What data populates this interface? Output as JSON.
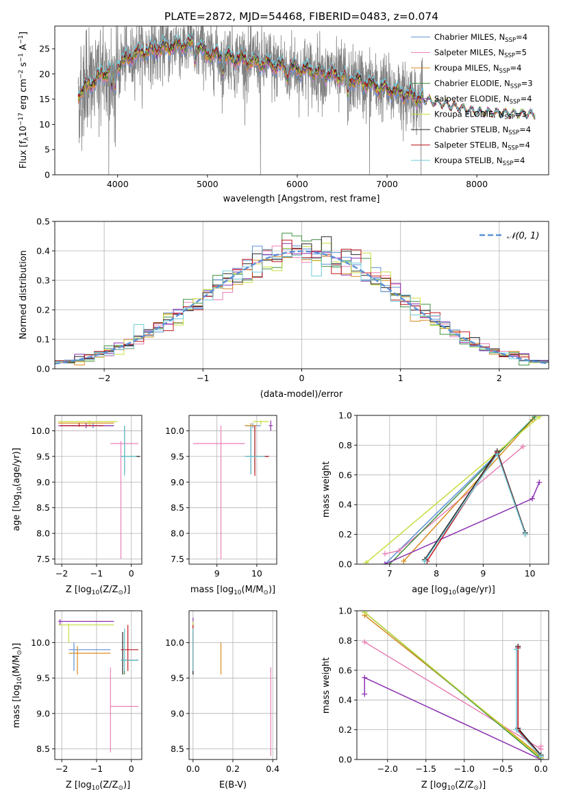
{
  "figure_title": "PLATE=2872, MJD=54468, FIBERID=0483, z=0.074",
  "colors": {
    "Chabrier MILES": "#5b8fd6",
    "Salpeter MILES": "#e87fb4",
    "Kroupa MILES": "#d98a1c",
    "Chabrier ELODIE": "#3f8f3f",
    "Salpeter ELODIE": "#8b2fb0",
    "Kroupa ELODIE": "#c8dc3c",
    "Chabrier STELIB": "#222222",
    "Salpeter STELIB": "#c0141e",
    "Kroupa STELIB": "#6ccad8",
    "data": "#7f7f7f",
    "grid": "#b0b0b0",
    "normal": "#5b8fd6"
  },
  "chart_data": [
    {
      "id": "spectrum",
      "type": "line",
      "xlabel": "wavelength [Angstrom, rest frame]",
      "ylabel_base": "Flux [f",
      "ylabel_sub": "λ",
      "ylabel_main": "10",
      "ylabel_exp1": "−17",
      "ylabel_mid": " erg cm",
      "ylabel_exp2": "−2",
      "ylabel_mid2": " s",
      "ylabel_exp3": "−1",
      "ylabel_end": " A",
      "ylabel_exp4": "−1",
      "ylabel_close": "]",
      "xlim": [
        3300,
        8800
      ],
      "ylim": [
        0,
        29.5
      ],
      "xticks": [
        4000,
        5000,
        6000,
        7000,
        8000
      ],
      "yticks": [
        0,
        5,
        10,
        15,
        20,
        25
      ],
      "grid": false,
      "legend_position": "top-right",
      "data_range": [
        3560,
        7400
      ],
      "model_range": [
        3560,
        8650
      ],
      "continuum": [
        [
          3560,
          16
        ],
        [
          3800,
          19.5
        ],
        [
          4200,
          24
        ],
        [
          4600,
          25.5
        ],
        [
          4850,
          26
        ],
        [
          5000,
          24
        ],
        [
          5500,
          22.5
        ],
        [
          6000,
          21
        ],
        [
          6500,
          19.5
        ],
        [
          7000,
          17
        ],
        [
          7400,
          15
        ],
        [
          8000,
          12.5
        ],
        [
          8650,
          12
        ]
      ],
      "dips": [
        [
          3934,
          4
        ],
        [
          3969,
          4
        ],
        [
          4861,
          3
        ],
        [
          5175,
          2.5
        ],
        [
          6563,
          4
        ],
        [
          5890,
          2
        ]
      ],
      "spikes_to_zero": [
        3900,
        5590,
        6805,
        7380,
        7420
      ],
      "noise_amplitude": 6,
      "legend": [
        {
          "pre": "Chabrier MILES, N",
          "sub": "SSP",
          "post": "=4"
        },
        {
          "pre": "Salpeter MILES, N",
          "sub": "SSP",
          "post": "=5"
        },
        {
          "pre": "Kroupa MILES, N",
          "sub": "SSP",
          "post": "=4"
        },
        {
          "pre": "Chabrier ELODIE, N",
          "sub": "SSP",
          "post": "=3"
        },
        {
          "pre": "Salpeter ELODIE, N",
          "sub": "SSP",
          "post": "=4"
        },
        {
          "pre": "Kroupa ELODIE, N",
          "sub": "SSP",
          "post": "=3"
        },
        {
          "pre": "Chabrier STELIB, N",
          "sub": "SSP",
          "post": "=4"
        },
        {
          "pre": "Salpeter STELIB, N",
          "sub": "SSP",
          "post": "=4"
        },
        {
          "pre": "Kroupa STELIB, N",
          "sub": "SSP",
          "post": "=4"
        }
      ]
    },
    {
      "id": "residuals",
      "type": "line",
      "xlabel": "(data-model)/error",
      "ylabel": "Normed distribution",
      "xlim": [
        -2.5,
        2.5
      ],
      "ylim": [
        0,
        0.5
      ],
      "xticks": [
        -2,
        -1,
        0,
        1,
        2
      ],
      "yticks": [
        0.0,
        0.1,
        0.2,
        0.3,
        0.4,
        0.5
      ],
      "ytick_labels": [
        "0.0",
        "0.1",
        "0.2",
        "0.3",
        "0.4",
        "0.5"
      ],
      "xtick_labels": [
        "−2",
        "−1",
        "0",
        "1",
        "2"
      ],
      "grid": true,
      "bin_width": 0.1,
      "legend_position": "top-right",
      "legend": "𝒩(0, 1)"
    },
    {
      "id": "age-vs-Z",
      "type": "scatter",
      "xlabel": "Z [log",
      "xlabel_sub": "10",
      "xlabel_rest": "(Z/Z",
      "xlabel_sub2": "⊙",
      "xlabel_end": ")]",
      "ylabel": "age  [log10(age/yr)]",
      "xlim": [
        -2.2,
        0.3
      ],
      "ylim": [
        7.4,
        10.3
      ],
      "xticks": [
        -2,
        -1,
        0
      ],
      "xtick_labels": [
        "−2",
        "−1",
        "0"
      ],
      "yticks": [
        7.5,
        8.0,
        8.5,
        9.0,
        9.5,
        10.0
      ],
      "ytick_labels": [
        "7.5",
        "8.0",
        "8.5",
        "9.0",
        "9.5",
        "10.0"
      ],
      "grid": true,
      "points": [
        {
          "model": "Chabrier MILES",
          "x": -1.1,
          "y": 10.1,
          "x_lo": -2.05,
          "x_hi": -0.5,
          "y_lo": 10.05,
          "y_hi": 10.15
        },
        {
          "model": "Salpeter MILES",
          "x": -0.3,
          "y": 9.75,
          "x_lo": -0.6,
          "x_hi": 0.2,
          "y_lo": 7.5,
          "y_hi": 9.8
        },
        {
          "model": "Kroupa MILES",
          "x": -1.2,
          "y": 10.15,
          "x_lo": -2.1,
          "x_hi": -0.5,
          "y_lo": 10.1,
          "y_hi": 10.18
        },
        {
          "model": "Chabrier ELODIE",
          "x": -0.2,
          "y": 9.5,
          "x_lo": -0.3,
          "x_hi": 0.2,
          "y_lo": 9.2,
          "y_hi": 10.1
        },
        {
          "model": "Salpeter ELODIE",
          "x": -1.3,
          "y": 10.1,
          "x_lo": -2.1,
          "x_hi": -0.5,
          "y_lo": 10.05,
          "y_hi": 10.15
        },
        {
          "model": "Kroupa ELODIE",
          "x": -1.2,
          "y": 10.18,
          "x_lo": -2.1,
          "x_hi": -0.4,
          "y_lo": 10.12,
          "y_hi": 10.2
        },
        {
          "model": "Chabrier STELIB",
          "x": -0.2,
          "y": 9.5,
          "x_lo": -0.3,
          "x_hi": 0.25,
          "y_lo": 9.15,
          "y_hi": 10.1
        },
        {
          "model": "Salpeter STELIB",
          "x": -1.5,
          "y": 10.1,
          "x_lo": -2.05,
          "x_hi": -0.8,
          "y_lo": 10.08,
          "y_hi": 10.15
        },
        {
          "model": "Kroupa STELIB",
          "x": -0.2,
          "y": 9.5,
          "x_lo": -0.3,
          "x_hi": 0.15,
          "y_lo": 9.12,
          "y_hi": 10.1
        }
      ]
    },
    {
      "id": "age-vs-mass",
      "type": "scatter",
      "xlabel": "mass [log",
      "xlabel_sub": "10",
      "xlabel_rest": "(M/M",
      "xlabel_sub2": "⊙",
      "xlabel_end": ")]",
      "xlim": [
        8.3,
        10.5
      ],
      "ylim": [
        7.4,
        10.3
      ],
      "xticks": [
        9,
        10
      ],
      "xtick_labels": [
        "9",
        "10"
      ],
      "yticks": [
        7.5,
        8.0,
        8.5,
        9.0,
        9.5,
        10.0
      ],
      "ytick_labels": [
        "7.5",
        "8.0",
        "8.5",
        "9.0",
        "9.5",
        "10.0"
      ],
      "grid": true,
      "points": [
        {
          "model": "Chabrier MILES",
          "x": 9.9,
          "y": 10.1,
          "x_lo": 9.7,
          "x_hi": 10.1,
          "y_lo": 10.05,
          "y_hi": 10.15
        },
        {
          "model": "Salpeter MILES",
          "x": 9.1,
          "y": 9.75,
          "x_lo": 8.4,
          "x_hi": 9.7,
          "y_lo": 7.5,
          "y_hi": 10.1
        },
        {
          "model": "Kroupa MILES",
          "x": 9.85,
          "y": 10.1,
          "x_lo": 9.7,
          "x_hi": 10.0,
          "y_lo": 10.05,
          "y_hi": 10.15
        },
        {
          "model": "Chabrier ELODIE",
          "x": 9.95,
          "y": 9.5,
          "x_lo": 9.75,
          "x_hi": 10.3,
          "y_lo": 9.2,
          "y_hi": 10.1
        },
        {
          "model": "Salpeter ELODIE",
          "x": 10.35,
          "y": 10.1,
          "x_lo": 10.3,
          "x_hi": 10.4,
          "y_lo": 10.0,
          "y_hi": 10.2
        },
        {
          "model": "Kroupa ELODIE",
          "x": 10.1,
          "y": 10.18,
          "x_lo": 9.9,
          "x_hi": 10.3,
          "y_lo": 10.12,
          "y_hi": 10.2
        },
        {
          "model": "Chabrier STELIB",
          "x": 9.85,
          "y": 9.5,
          "x_lo": 9.7,
          "x_hi": 10.3,
          "y_lo": 9.15,
          "y_hi": 10.1
        },
        {
          "model": "Salpeter STELIB",
          "x": 9.95,
          "y": 9.5,
          "x_lo": 9.8,
          "x_hi": 10.3,
          "y_lo": 9.12,
          "y_hi": 10.1
        },
        {
          "model": "Kroupa STELIB",
          "x": 9.85,
          "y": 9.5,
          "x_lo": 9.7,
          "x_hi": 10.2,
          "y_lo": 9.15,
          "y_hi": 10.1
        }
      ]
    },
    {
      "id": "weight-vs-age",
      "type": "line",
      "xlabel": "age  [log",
      "xlabel_sub": "10",
      "xlabel_rest": "(age/yr)]",
      "ylabel": "mass weight",
      "xlim": [
        6.3,
        10.4
      ],
      "ylim": [
        0,
        1.0
      ],
      "xticks": [
        7,
        8,
        9,
        10
      ],
      "xtick_labels": [
        "7",
        "8",
        "9",
        "10"
      ],
      "yticks": [
        0.0,
        0.2,
        0.4,
        0.6,
        0.8,
        1.0
      ],
      "ytick_labels": [
        "0.0",
        "0.2",
        "0.4",
        "0.6",
        "0.8",
        "1.0"
      ],
      "grid": true,
      "series": [
        {
          "model": "Chabrier MILES",
          "x": [
            6.9,
            10.1
          ],
          "y": [
            0.0,
            0.99
          ]
        },
        {
          "model": "Salpeter MILES",
          "x": [
            6.9,
            7.2,
            9.85
          ],
          "y": [
            0.07,
            0.09,
            0.79
          ]
        },
        {
          "model": "Kroupa MILES",
          "x": [
            7.3,
            10.05
          ],
          "y": [
            0.02,
            0.97
          ]
        },
        {
          "model": "Chabrier ELODIE",
          "x": [
            7.0,
            10.1
          ],
          "y": [
            0.0,
            0.99
          ]
        },
        {
          "model": "Salpeter ELODIE",
          "x": [
            6.9,
            10.05,
            10.2
          ],
          "y": [
            0.0,
            0.44,
            0.55
          ]
        },
        {
          "model": "Kroupa ELODIE",
          "x": [
            6.5,
            10.2
          ],
          "y": [
            0.01,
            0.99
          ]
        },
        {
          "model": "Chabrier STELIB",
          "x": [
            7.75,
            9.3,
            9.9
          ],
          "y": [
            0.03,
            0.76,
            0.21
          ]
        },
        {
          "model": "Salpeter STELIB",
          "x": [
            7.8,
            9.3,
            9.9
          ],
          "y": [
            0.02,
            0.75,
            0.2
          ]
        },
        {
          "model": "Kroupa STELIB",
          "x": [
            7.75,
            9.3,
            9.9
          ],
          "y": [
            0.02,
            0.74,
            0.2
          ]
        }
      ]
    },
    {
      "id": "mass-vs-Z",
      "type": "scatter",
      "xlabel": "Z [log",
      "xlabel_sub": "10",
      "xlabel_rest": "(Z/Z",
      "xlabel_sub2": "⊙",
      "xlabel_end": ")]",
      "ylabel": "mass [log10(M/M⊙)]",
      "xlim": [
        -2.2,
        0.3
      ],
      "ylim": [
        8.35,
        10.45
      ],
      "xticks": [
        -2,
        -1,
        0
      ],
      "xtick_labels": [
        "−2",
        "−1",
        "0"
      ],
      "yticks": [
        8.5,
        9.0,
        9.5,
        10.0
      ],
      "ytick_labels": [
        "8.5",
        "9.0",
        "9.5",
        "10.0"
      ],
      "grid": true,
      "points": [
        {
          "model": "Chabrier MILES",
          "x": -1.65,
          "y": 9.9,
          "x_lo": -1.8,
          "x_hi": -0.6,
          "y_lo": 9.6,
          "y_hi": 10.0
        },
        {
          "model": "Salpeter MILES",
          "x": -0.6,
          "y": 9.1,
          "x_lo": -0.6,
          "x_hi": 0.2,
          "y_lo": 8.45,
          "y_hi": 9.65
        },
        {
          "model": "Kroupa MILES",
          "x": -1.55,
          "y": 9.85,
          "x_lo": -1.8,
          "x_hi": -0.6,
          "y_lo": 9.55,
          "y_hi": 9.95
        },
        {
          "model": "Chabrier ELODIE",
          "x": -0.2,
          "y": 9.75,
          "x_lo": -0.3,
          "x_hi": 0.2,
          "y_lo": 9.55,
          "y_hi": 10.2
        },
        {
          "model": "Salpeter ELODIE",
          "x": -2.05,
          "y": 10.3,
          "x_lo": -2.1,
          "x_hi": -0.5,
          "y_lo": 10.25,
          "y_hi": 10.33
        },
        {
          "model": "Kroupa ELODIE",
          "x": -1.8,
          "y": 10.25,
          "x_lo": -2.1,
          "x_hi": -0.5,
          "y_lo": 10.0,
          "y_hi": 10.27
        },
        {
          "model": "Chabrier STELIB",
          "x": -0.25,
          "y": 9.75,
          "x_lo": -0.3,
          "x_hi": 0.2,
          "y_lo": 9.55,
          "y_hi": 10.15
        },
        {
          "model": "Salpeter STELIB",
          "x": -0.1,
          "y": 9.9,
          "x_lo": -0.3,
          "x_hi": 0.2,
          "y_lo": 9.6,
          "y_hi": 10.25
        },
        {
          "model": "Kroupa STELIB",
          "x": -0.2,
          "y": 9.75,
          "x_lo": -0.3,
          "x_hi": 0.2,
          "y_lo": 9.6,
          "y_hi": 10.2
        }
      ]
    },
    {
      "id": "mass-vs-ebv",
      "type": "scatter",
      "xlabel": "E(B-V)",
      "xlim": [
        -0.02,
        0.42
      ],
      "ylim": [
        8.35,
        10.45
      ],
      "xticks": [
        0.0,
        0.2,
        0.4
      ],
      "xtick_labels": [
        "0.0",
        "0.2",
        "0.4"
      ],
      "yticks": [
        8.5,
        9.0,
        9.5,
        10.0
      ],
      "ytick_labels": [
        "8.5",
        "9.0",
        "9.5",
        "10.0"
      ],
      "grid": true,
      "points": [
        {
          "model": "Chabrier MILES",
          "x": 0.0,
          "y": 9.9,
          "y_lo": 9.6,
          "y_hi": 10.1
        },
        {
          "model": "Salpeter MILES",
          "x": 0.39,
          "y": 9.1,
          "y_lo": 8.4,
          "y_hi": 9.65
        },
        {
          "model": "Kroupa MILES",
          "x": 0.14,
          "y": 9.8,
          "y_lo": 9.55,
          "y_hi": 10.0
        },
        {
          "model": "Chabrier ELODIE",
          "x": 0.0,
          "y": 9.75,
          "y_lo": 9.55,
          "y_hi": 10.2
        },
        {
          "model": "Salpeter ELODIE",
          "x": 0.0,
          "y": 10.3,
          "y_lo": 10.2,
          "y_hi": 10.35
        },
        {
          "model": "Kroupa ELODIE",
          "x": 0.0,
          "y": 10.25,
          "y_lo": 10.0,
          "y_hi": 10.3
        },
        {
          "model": "Chabrier STELIB",
          "x": 0.0,
          "y": 9.75,
          "y_lo": 9.55,
          "y_hi": 10.15
        },
        {
          "model": "Salpeter STELIB",
          "x": 0.0,
          "y": 9.9,
          "y_lo": 9.6,
          "y_hi": 10.25
        },
        {
          "model": "Kroupa STELIB",
          "x": 0.0,
          "y": 9.75,
          "y_lo": 9.6,
          "y_hi": 10.2
        }
      ]
    },
    {
      "id": "weight-vs-Z",
      "type": "line",
      "xlabel": "Z [log",
      "xlabel_sub": "10",
      "xlabel_rest": "(Z/Z",
      "xlabel_sub2": "⊙",
      "xlabel_end": ")]",
      "ylabel": "mass weight",
      "xlim": [
        -2.4,
        0.1
      ],
      "ylim": [
        0,
        1.0
      ],
      "xticks": [
        -2.0,
        -1.5,
        -1.0,
        -0.5,
        0.0
      ],
      "xtick_labels": [
        "−2.0",
        "−1.5",
        "−1.0",
        "−0.5",
        "0.0"
      ],
      "yticks": [
        0.0,
        0.2,
        0.4,
        0.6,
        0.8,
        1.0
      ],
      "ytick_labels": [
        "0.0",
        "0.2",
        "0.4",
        "0.6",
        "0.8",
        "1.0"
      ],
      "grid": true,
      "series": [
        {
          "model": "Chabrier MILES",
          "x": [
            -2.3,
            0.0
          ],
          "y": [
            0.99,
            0.01
          ]
        },
        {
          "model": "Salpeter MILES",
          "x": [
            -2.3,
            0.0,
            0.0
          ],
          "y": [
            0.79,
            0.07,
            0.09
          ]
        },
        {
          "model": "Kroupa MILES",
          "x": [
            -2.3,
            0.0
          ],
          "y": [
            0.97,
            0.02
          ]
        },
        {
          "model": "Chabrier ELODIE",
          "x": [
            -2.3,
            0.0
          ],
          "y": [
            0.99,
            0.0
          ]
        },
        {
          "model": "Salpeter ELODIE",
          "x": [
            -2.3,
            -2.3,
            0.0
          ],
          "y": [
            0.44,
            0.55,
            0.0
          ]
        },
        {
          "model": "Kroupa ELODIE",
          "x": [
            -2.3,
            0.0
          ],
          "y": [
            0.99,
            0.01
          ]
        },
        {
          "model": "Chabrier STELIB",
          "x": [
            -0.3,
            -0.3,
            0.0
          ],
          "y": [
            0.76,
            0.21,
            0.03
          ]
        },
        {
          "model": "Salpeter STELIB",
          "x": [
            -0.3,
            -0.3,
            0.0
          ],
          "y": [
            0.75,
            0.2,
            0.02
          ]
        },
        {
          "model": "Kroupa STELIB",
          "x": [
            -0.32,
            -0.32,
            0.0
          ],
          "y": [
            0.74,
            0.2,
            0.02
          ]
        }
      ]
    }
  ]
}
